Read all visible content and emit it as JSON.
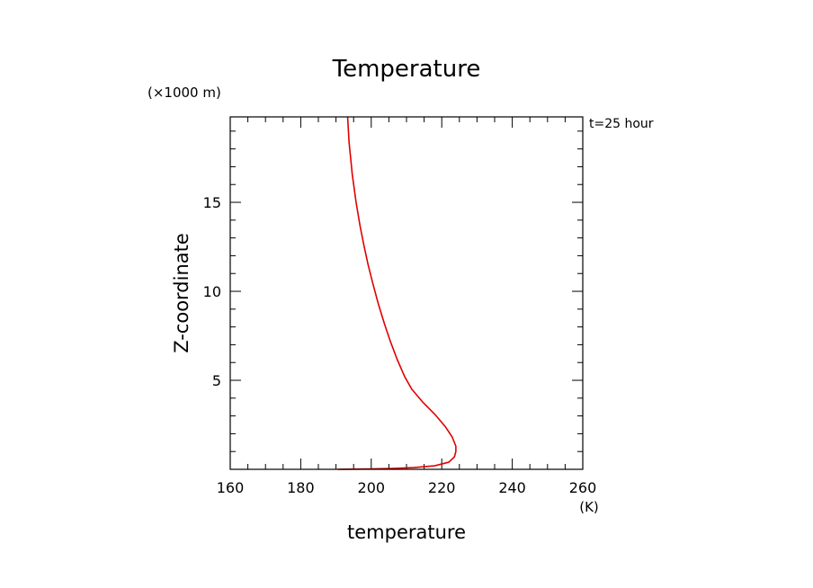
{
  "chart_data": {
    "type": "line",
    "title": "Temperature",
    "xlabel": "temperature",
    "ylabel": "Z-coordinate",
    "x_unit": "(K)",
    "y_unit": "(×1000 m)",
    "annotation": "t=25 hour",
    "xlim": [
      160,
      260
    ],
    "ylim": [
      0,
      19.8
    ],
    "xticks": [
      160,
      180,
      200,
      220,
      240,
      260
    ],
    "xtick_labels": [
      "160",
      "180",
      "200",
      "220",
      "240",
      "260"
    ],
    "x_minor_step": 5,
    "yticks": [
      5,
      10,
      15
    ],
    "ytick_labels": [
      "5",
      "10",
      "15"
    ],
    "y_minor_step": 1,
    "grid": false,
    "series": [
      {
        "color": "#e00000",
        "x": [
          190.5,
          200,
          206,
          212,
          218,
          222,
          223.6,
          224.0,
          224.0,
          223.0,
          221.0,
          218.0,
          214.5,
          211.5,
          209.5,
          207.3,
          205.4,
          203.7,
          202.0,
          200.5,
          199.1,
          197.9,
          196.8,
          195.7,
          194.6,
          193.7,
          193.3
        ],
        "y": [
          0.0,
          0.02,
          0.05,
          0.1,
          0.2,
          0.4,
          0.7,
          1.0,
          1.3,
          1.8,
          2.4,
          3.1,
          3.8,
          4.5,
          5.2,
          6.2,
          7.2,
          8.2,
          9.3,
          10.4,
          11.5,
          12.6,
          13.7,
          15.0,
          16.6,
          18.4,
          19.8
        ]
      }
    ]
  }
}
